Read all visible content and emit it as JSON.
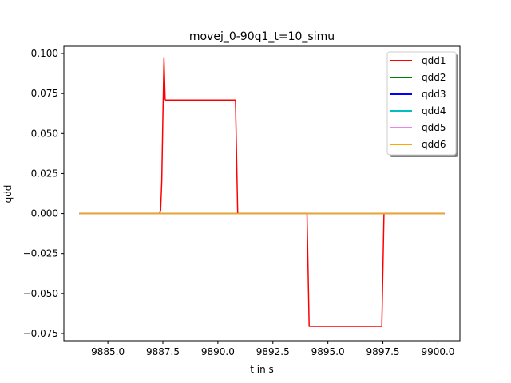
{
  "chart_data": {
    "type": "line",
    "title": "movej_0-90q1_t=10_simu",
    "xlabel": "t in s",
    "ylabel": "qdd",
    "xlim": [
      9883.0,
      9901.0
    ],
    "ylim": [
      -0.0795,
      0.1045
    ],
    "xticks": [
      9885.0,
      9887.5,
      9890.0,
      9892.5,
      9895.0,
      9897.5,
      9900.0
    ],
    "xtick_labels": [
      "9885.0",
      "9887.5",
      "9890.0",
      "9892.5",
      "9895.0",
      "9897.5",
      "9900.0"
    ],
    "yticks": [
      0.1,
      0.075,
      0.05,
      0.025,
      0.0,
      -0.025,
      -0.05,
      -0.075
    ],
    "ytick_labels": [
      "0.100",
      "0.075",
      "0.050",
      "0.025",
      "0.000",
      "−0.025",
      "−0.050",
      "−0.075"
    ],
    "grid": false,
    "legend_position": "top-right",
    "series": [
      {
        "name": "qdd1",
        "color": "#ff0000",
        "x": [
          9883.7,
          9887.35,
          9887.4,
          9887.45,
          9887.5,
          9887.55,
          9887.6,
          9887.62,
          9887.7,
          9890.8,
          9890.9,
          9894.05,
          9894.15,
          9897.45,
          9897.55,
          9900.3
        ],
        "y": [
          0.0,
          0.0,
          0.002,
          0.02,
          0.06,
          0.097,
          0.0715,
          0.071,
          0.071,
          0.071,
          0.0,
          0.0,
          -0.0705,
          -0.0705,
          0.0,
          0.0
        ]
      },
      {
        "name": "qdd2",
        "color": "#008000",
        "x": [
          9883.7,
          9900.3
        ],
        "y": [
          0.0,
          0.0
        ]
      },
      {
        "name": "qdd3",
        "color": "#0000ff",
        "x": [
          9883.7,
          9900.3
        ],
        "y": [
          0.0,
          0.0
        ]
      },
      {
        "name": "qdd4",
        "color": "#00bfbf",
        "x": [
          9883.7,
          9900.3
        ],
        "y": [
          0.0,
          0.0
        ]
      },
      {
        "name": "qdd5",
        "color": "#ee82ee",
        "x": [
          9883.7,
          9900.3
        ],
        "y": [
          0.0,
          0.0
        ]
      },
      {
        "name": "qdd6",
        "color": "#ffa500",
        "x": [
          9883.7,
          9900.3
        ],
        "y": [
          0.0,
          0.0
        ]
      }
    ]
  }
}
